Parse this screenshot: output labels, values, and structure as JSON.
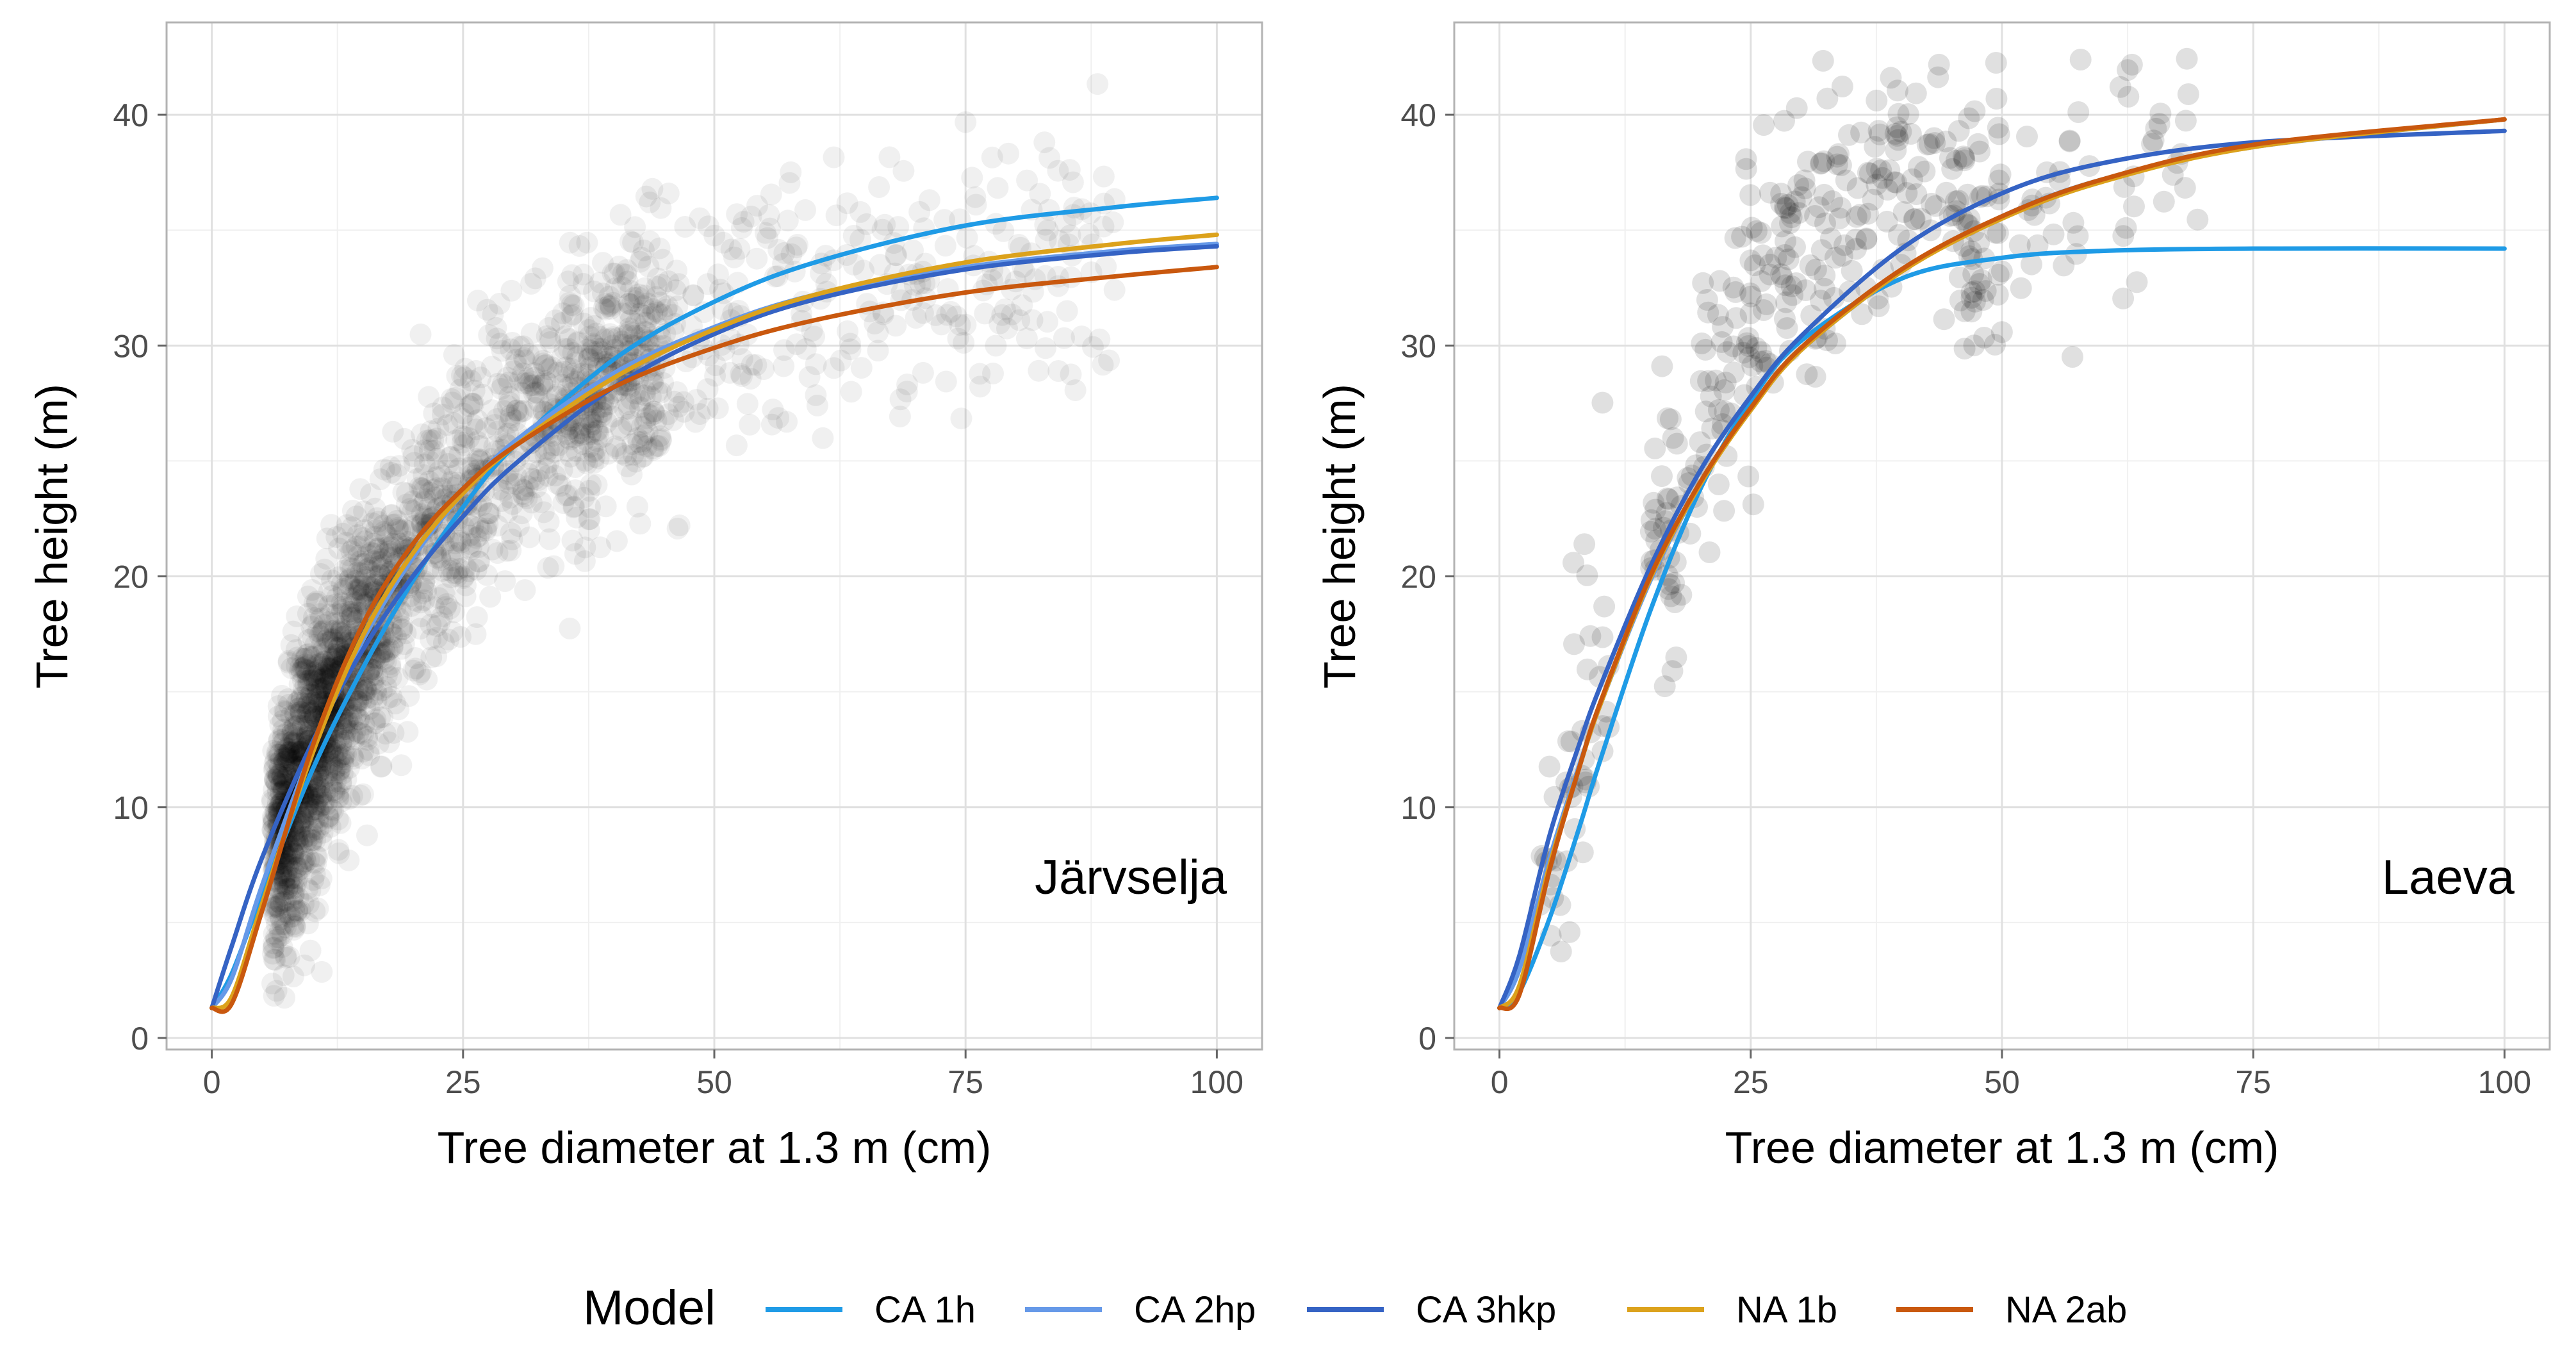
{
  "chart_data": [
    {
      "type": "scatter",
      "panel": "Järvselja",
      "panel_label": "Järvselja",
      "xlabel": "Tree diameter at 1.3 m (cm)",
      "ylabel": "Tree height (m)",
      "xlim": [
        -4.5,
        104.5
      ],
      "ylim": [
        -0.5,
        44
      ],
      "x_ticks": [
        0,
        25,
        50,
        75,
        100
      ],
      "x_tick_labels": [
        "0",
        "25",
        "50",
        "75",
        "100"
      ],
      "y_ticks": [
        0,
        10,
        20,
        30,
        40
      ],
      "y_tick_labels": [
        "0",
        "10",
        "20",
        "30",
        "40"
      ],
      "grid": true,
      "points_note": "dense semi-transparent black observations of tree height vs diameter",
      "series": [
        {
          "name": "CA 1h",
          "x": [
            0,
            2,
            5,
            10,
            15,
            20,
            25,
            30,
            40,
            50,
            60,
            75,
            90,
            100
          ],
          "y": [
            1.3,
            2.8,
            6.2,
            11.6,
            16.0,
            19.8,
            23.0,
            25.6,
            29.4,
            31.9,
            33.6,
            35.2,
            36.0,
            36.4
          ]
        },
        {
          "name": "CA 2hp",
          "x": [
            0,
            2,
            5,
            10,
            15,
            20,
            25,
            30,
            40,
            50,
            60,
            75,
            90,
            100
          ],
          "y": [
            1.3,
            2.6,
            6.6,
            12.5,
            17.2,
            20.8,
            23.6,
            25.8,
            28.8,
            30.8,
            32.2,
            33.4,
            34.1,
            34.4
          ]
        },
        {
          "name": "CA 3hkp",
          "x": [
            0,
            2,
            5,
            10,
            15,
            20,
            25,
            30,
            40,
            50,
            60,
            75,
            90,
            100
          ],
          "y": [
            1.3,
            4.0,
            7.8,
            12.8,
            16.8,
            20.0,
            22.6,
            24.8,
            28.2,
            30.5,
            32.0,
            33.3,
            34.0,
            34.3
          ]
        },
        {
          "name": "NA 1b",
          "x": [
            0,
            2,
            5,
            10,
            15,
            20,
            25,
            30,
            40,
            50,
            60,
            75,
            90,
            100
          ],
          "y": [
            1.3,
            1.8,
            5.8,
            12.3,
            17.4,
            21.0,
            23.6,
            25.6,
            28.6,
            30.7,
            32.2,
            33.6,
            34.4,
            34.8
          ]
        },
        {
          "name": "NA 2ab",
          "x": [
            0,
            2,
            5,
            10,
            15,
            20,
            25,
            30,
            40,
            50,
            60,
            75,
            90,
            100
          ],
          "y": [
            1.3,
            1.5,
            5.5,
            12.6,
            17.9,
            21.4,
            23.8,
            25.6,
            28.2,
            29.9,
            31.1,
            32.3,
            33.0,
            33.4
          ]
        }
      ]
    },
    {
      "type": "scatter",
      "panel": "Laeva",
      "panel_label": "Laeva",
      "xlabel": "Tree diameter at 1.3 m (cm)",
      "ylabel": "Tree height (m)",
      "xlim": [
        -4.5,
        104.5
      ],
      "ylim": [
        -0.5,
        44
      ],
      "x_ticks": [
        0,
        25,
        50,
        75,
        100
      ],
      "x_tick_labels": [
        "0",
        "25",
        "50",
        "75",
        "100"
      ],
      "y_ticks": [
        0,
        10,
        20,
        30,
        40
      ],
      "y_tick_labels": [
        "0",
        "10",
        "20",
        "30",
        "40"
      ],
      "grid": true,
      "points_note": "semi-transparent black observations of tree height vs diameter",
      "series": [
        {
          "name": "CA 1h",
          "x": [
            0,
            2,
            5,
            8,
            10,
            15,
            20,
            25,
            30,
            40,
            50,
            60,
            75,
            100
          ],
          "y": [
            1.3,
            2.0,
            5.2,
            9.2,
            12.0,
            18.5,
            23.8,
            27.6,
            30.2,
            32.9,
            33.8,
            34.1,
            34.2,
            34.2
          ]
        },
        {
          "name": "CA 2hp",
          "x": [
            0,
            2,
            5,
            8,
            10,
            15,
            20,
            25,
            30,
            40,
            50,
            60,
            75,
            100
          ],
          "y": [
            1.3,
            3.0,
            7.8,
            11.9,
            14.4,
            19.8,
            24.0,
            27.2,
            29.8,
            33.2,
            35.6,
            37.2,
            38.6,
            39.8
          ]
        },
        {
          "name": "CA 3hkp",
          "x": [
            0,
            2,
            5,
            8,
            10,
            15,
            20,
            25,
            30,
            40,
            50,
            60,
            75,
            100
          ],
          "y": [
            1.3,
            3.6,
            8.8,
            12.8,
            15.2,
            20.4,
            24.6,
            27.8,
            30.4,
            34.2,
            36.6,
            37.9,
            38.8,
            39.3
          ]
        },
        {
          "name": "NA 1b",
          "x": [
            0,
            2,
            5,
            8,
            10,
            15,
            20,
            25,
            30,
            40,
            50,
            60,
            75,
            100
          ],
          "y": [
            1.3,
            2.3,
            7.5,
            11.8,
            14.4,
            19.9,
            24.0,
            27.2,
            29.8,
            33.2,
            35.5,
            37.1,
            38.6,
            39.8
          ]
        },
        {
          "name": "NA 2ab",
          "x": [
            0,
            2,
            5,
            8,
            10,
            15,
            20,
            25,
            30,
            40,
            50,
            60,
            75,
            100
          ],
          "y": [
            1.3,
            1.9,
            7.3,
            11.8,
            14.5,
            20.0,
            24.1,
            27.3,
            29.9,
            33.3,
            35.6,
            37.2,
            38.7,
            39.8
          ]
        }
      ]
    }
  ],
  "legend": {
    "title": "Model",
    "items": [
      {
        "label": "CA 1h",
        "color": "#1f9be6"
      },
      {
        "label": "CA 2hp",
        "color": "#6699e8"
      },
      {
        "label": "CA 3hkp",
        "color": "#3563c4"
      },
      {
        "label": "NA 1b",
        "color": "#dca21c"
      },
      {
        "label": "NA 2ab",
        "color": "#c9580e"
      }
    ]
  }
}
